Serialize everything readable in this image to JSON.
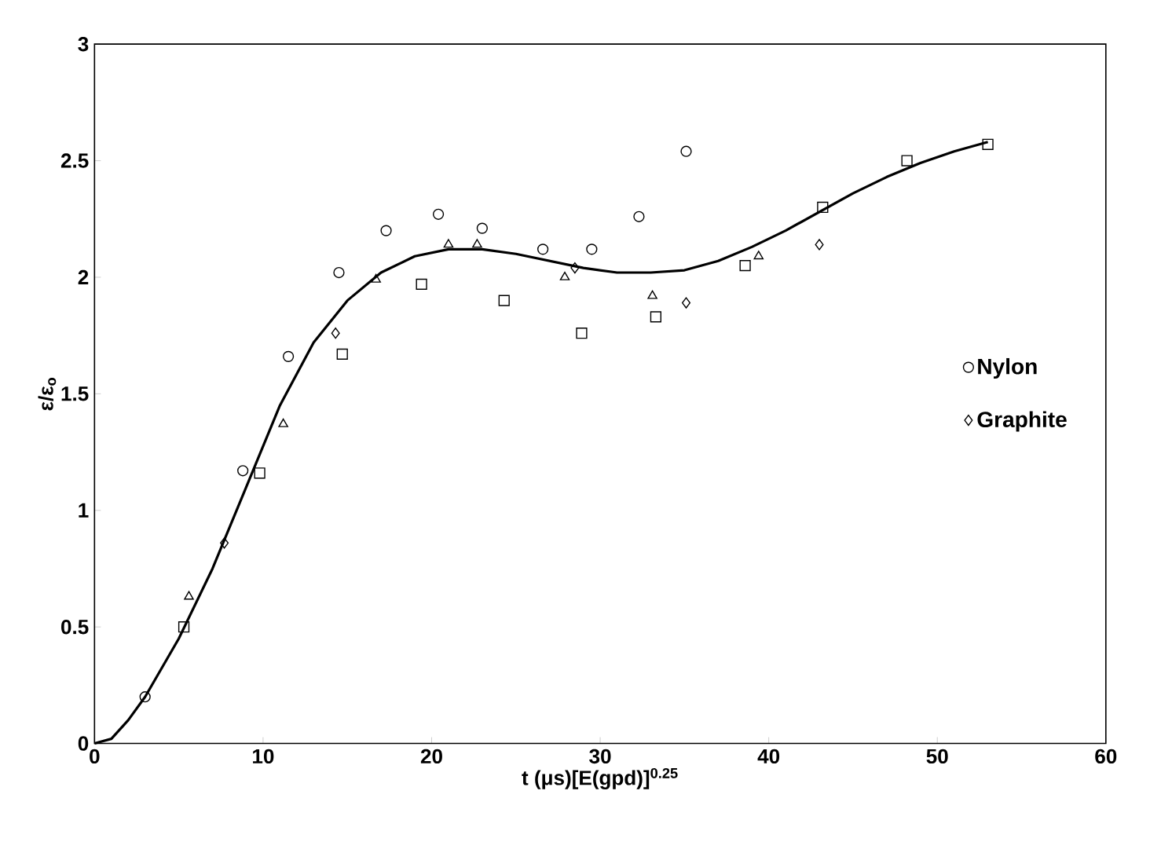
{
  "chart_data": {
    "type": "scatter",
    "xlabel": "t (μs)[E(gpd)]$^{0.25}$",
    "ylabel": "ε/ε$_{o}$",
    "xlim": [
      0,
      60
    ],
    "ylim": [
      0,
      3
    ],
    "xticks": [
      0,
      10,
      20,
      30,
      40,
      50,
      60
    ],
    "yticks": [
      0,
      0.5,
      1,
      1.5,
      2,
      2.5,
      3
    ],
    "grid": false,
    "legend": "right",
    "series": [
      {
        "name": "Nylon",
        "color": "#000000",
        "marker": "circle",
        "x": [
          3,
          8.8,
          11.5,
          14.5,
          17.3,
          20.4,
          23,
          26.6,
          29.5,
          32.3,
          35.1
        ],
        "values": [
          0.2,
          1.17,
          1.66,
          2.02,
          2.2,
          2.27,
          2.21,
          2.12,
          2.12,
          2.26,
          2.54
        ]
      },
      {
        "color": "#000000",
        "marker": "square",
        "x": [
          5.3,
          9.8,
          14.7,
          19.4,
          24.3,
          28.9,
          33.3,
          38.6,
          43.2,
          48.2,
          53
        ],
        "values": [
          0.5,
          1.16,
          1.67,
          1.97,
          1.9,
          1.76,
          1.83,
          2.05,
          2.3,
          2.5,
          2.57
        ]
      },
      {
        "color": "#000000",
        "marker": "triangle",
        "x": [
          5.6,
          11.2,
          16.7,
          21,
          22.7,
          27.9,
          33.1,
          39.4
        ],
        "values": [
          0.63,
          1.37,
          1.99,
          2.14,
          2.14,
          2.0,
          1.92,
          2.09
        ]
      },
      {
        "name": "Graphite",
        "color": "#000000",
        "marker": "diamond",
        "x": [
          7.7,
          14.3,
          28.5,
          35.1,
          43
        ],
        "values": [
          0.86,
          1.76,
          2.04,
          1.89,
          2.14
        ]
      },
      {
        "type": "line",
        "color": "#000000",
        "marker": "none",
        "x": [
          0,
          1,
          2,
          3,
          5,
          7,
          9,
          11,
          13,
          15,
          17,
          19,
          21,
          23,
          25,
          27,
          29,
          31,
          33,
          35,
          37,
          39,
          41,
          43,
          45,
          47,
          49,
          51,
          53
        ],
        "values": [
          0,
          0.02,
          0.1,
          0.2,
          0.45,
          0.75,
          1.1,
          1.45,
          1.72,
          1.9,
          2.02,
          2.09,
          2.12,
          2.12,
          2.1,
          2.07,
          2.04,
          2.02,
          2.02,
          2.03,
          2.07,
          2.13,
          2.2,
          2.28,
          2.36,
          2.43,
          2.49,
          2.54,
          2.58
        ]
      }
    ]
  }
}
